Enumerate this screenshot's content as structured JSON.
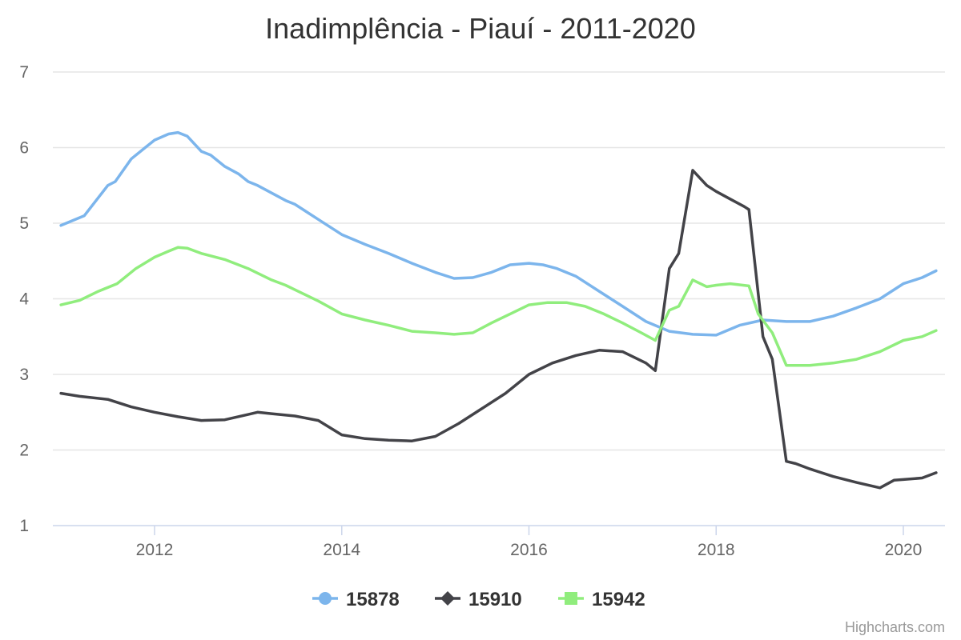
{
  "credits": "Highcharts.com",
  "chart_data": {
    "type": "line",
    "title": "Inadimplência - Piauí - 2011-2020",
    "xlabel": "",
    "ylabel": "",
    "xlim": [
      2011,
      2020.4
    ],
    "ylim": [
      1,
      7
    ],
    "y_ticks": [
      1,
      2,
      3,
      4,
      5,
      6,
      7
    ],
    "x_ticks": [
      2012,
      2014,
      2016,
      2018,
      2020
    ],
    "grid": "horizontal",
    "legend_position": "bottom-center",
    "colors": {
      "15878": "#7cb5ec",
      "15910": "#434348",
      "15942": "#90ed7d"
    },
    "series": [
      {
        "name": "15878",
        "marker": "circle",
        "color": "#7cb5ec",
        "points": [
          [
            2011.0,
            4.97
          ],
          [
            2011.25,
            5.1
          ],
          [
            2011.5,
            5.5
          ],
          [
            2011.58,
            5.55
          ],
          [
            2011.75,
            5.85
          ],
          [
            2011.9,
            6.0
          ],
          [
            2012.0,
            6.1
          ],
          [
            2012.15,
            6.18
          ],
          [
            2012.25,
            6.2
          ],
          [
            2012.35,
            6.15
          ],
          [
            2012.5,
            5.95
          ],
          [
            2012.6,
            5.9
          ],
          [
            2012.75,
            5.75
          ],
          [
            2012.9,
            5.65
          ],
          [
            2013.0,
            5.55
          ],
          [
            2013.1,
            5.5
          ],
          [
            2013.25,
            5.4
          ],
          [
            2013.4,
            5.3
          ],
          [
            2013.5,
            5.25
          ],
          [
            2013.75,
            5.05
          ],
          [
            2014.0,
            4.85
          ],
          [
            2014.25,
            4.72
          ],
          [
            2014.5,
            4.6
          ],
          [
            2014.75,
            4.47
          ],
          [
            2015.0,
            4.35
          ],
          [
            2015.2,
            4.27
          ],
          [
            2015.4,
            4.28
          ],
          [
            2015.6,
            4.35
          ],
          [
            2015.8,
            4.45
          ],
          [
            2016.0,
            4.47
          ],
          [
            2016.15,
            4.45
          ],
          [
            2016.3,
            4.4
          ],
          [
            2016.5,
            4.3
          ],
          [
            2016.75,
            4.1
          ],
          [
            2017.0,
            3.9
          ],
          [
            2017.25,
            3.7
          ],
          [
            2017.5,
            3.57
          ],
          [
            2017.75,
            3.53
          ],
          [
            2018.0,
            3.52
          ],
          [
            2018.25,
            3.65
          ],
          [
            2018.5,
            3.72
          ],
          [
            2018.75,
            3.7
          ],
          [
            2019.0,
            3.7
          ],
          [
            2019.25,
            3.77
          ],
          [
            2019.5,
            3.88
          ],
          [
            2019.75,
            4.0
          ],
          [
            2020.0,
            4.2
          ],
          [
            2020.2,
            4.28
          ],
          [
            2020.35,
            4.37
          ]
        ]
      },
      {
        "name": "15910",
        "marker": "diamond",
        "color": "#434348",
        "points": [
          [
            2011.0,
            2.75
          ],
          [
            2011.2,
            2.71
          ],
          [
            2011.5,
            2.67
          ],
          [
            2011.75,
            2.57
          ],
          [
            2012.0,
            2.5
          ],
          [
            2012.25,
            2.44
          ],
          [
            2012.5,
            2.39
          ],
          [
            2012.75,
            2.4
          ],
          [
            2013.0,
            2.47
          ],
          [
            2013.1,
            2.5
          ],
          [
            2013.25,
            2.48
          ],
          [
            2013.5,
            2.45
          ],
          [
            2013.75,
            2.39
          ],
          [
            2014.0,
            2.2
          ],
          [
            2014.25,
            2.15
          ],
          [
            2014.5,
            2.13
          ],
          [
            2014.75,
            2.12
          ],
          [
            2015.0,
            2.18
          ],
          [
            2015.25,
            2.35
          ],
          [
            2015.5,
            2.55
          ],
          [
            2015.75,
            2.75
          ],
          [
            2016.0,
            3.0
          ],
          [
            2016.25,
            3.15
          ],
          [
            2016.5,
            3.25
          ],
          [
            2016.75,
            3.32
          ],
          [
            2017.0,
            3.3
          ],
          [
            2017.25,
            3.15
          ],
          [
            2017.35,
            3.05
          ],
          [
            2017.5,
            4.4
          ],
          [
            2017.6,
            4.6
          ],
          [
            2017.75,
            5.7
          ],
          [
            2017.9,
            5.5
          ],
          [
            2018.0,
            5.42
          ],
          [
            2018.15,
            5.32
          ],
          [
            2018.3,
            5.22
          ],
          [
            2018.35,
            5.18
          ],
          [
            2018.5,
            3.5
          ],
          [
            2018.6,
            3.2
          ],
          [
            2018.75,
            1.85
          ],
          [
            2018.85,
            1.82
          ],
          [
            2019.0,
            1.75
          ],
          [
            2019.25,
            1.65
          ],
          [
            2019.5,
            1.57
          ],
          [
            2019.75,
            1.5
          ],
          [
            2019.9,
            1.6
          ],
          [
            2020.0,
            1.61
          ],
          [
            2020.2,
            1.63
          ],
          [
            2020.35,
            1.7
          ]
        ]
      },
      {
        "name": "15942",
        "marker": "square",
        "color": "#90ed7d",
        "points": [
          [
            2011.0,
            3.92
          ],
          [
            2011.2,
            3.98
          ],
          [
            2011.4,
            4.1
          ],
          [
            2011.6,
            4.2
          ],
          [
            2011.8,
            4.4
          ],
          [
            2012.0,
            4.55
          ],
          [
            2012.15,
            4.63
          ],
          [
            2012.25,
            4.68
          ],
          [
            2012.35,
            4.67
          ],
          [
            2012.5,
            4.6
          ],
          [
            2012.75,
            4.52
          ],
          [
            2013.0,
            4.4
          ],
          [
            2013.25,
            4.25
          ],
          [
            2013.4,
            4.18
          ],
          [
            2013.5,
            4.12
          ],
          [
            2013.75,
            3.97
          ],
          [
            2014.0,
            3.8
          ],
          [
            2014.25,
            3.72
          ],
          [
            2014.5,
            3.65
          ],
          [
            2014.75,
            3.57
          ],
          [
            2015.0,
            3.55
          ],
          [
            2015.2,
            3.53
          ],
          [
            2015.4,
            3.55
          ],
          [
            2015.6,
            3.68
          ],
          [
            2015.8,
            3.8
          ],
          [
            2016.0,
            3.92
          ],
          [
            2016.2,
            3.95
          ],
          [
            2016.4,
            3.95
          ],
          [
            2016.6,
            3.9
          ],
          [
            2016.8,
            3.8
          ],
          [
            2017.0,
            3.68
          ],
          [
            2017.2,
            3.55
          ],
          [
            2017.35,
            3.45
          ],
          [
            2017.5,
            3.85
          ],
          [
            2017.6,
            3.9
          ],
          [
            2017.75,
            4.25
          ],
          [
            2017.9,
            4.16
          ],
          [
            2018.0,
            4.18
          ],
          [
            2018.15,
            4.2
          ],
          [
            2018.35,
            4.17
          ],
          [
            2018.45,
            3.8
          ],
          [
            2018.6,
            3.55
          ],
          [
            2018.75,
            3.12
          ],
          [
            2019.0,
            3.12
          ],
          [
            2019.25,
            3.15
          ],
          [
            2019.5,
            3.2
          ],
          [
            2019.75,
            3.3
          ],
          [
            2020.0,
            3.45
          ],
          [
            2020.2,
            3.5
          ],
          [
            2020.35,
            3.58
          ]
        ]
      }
    ]
  }
}
